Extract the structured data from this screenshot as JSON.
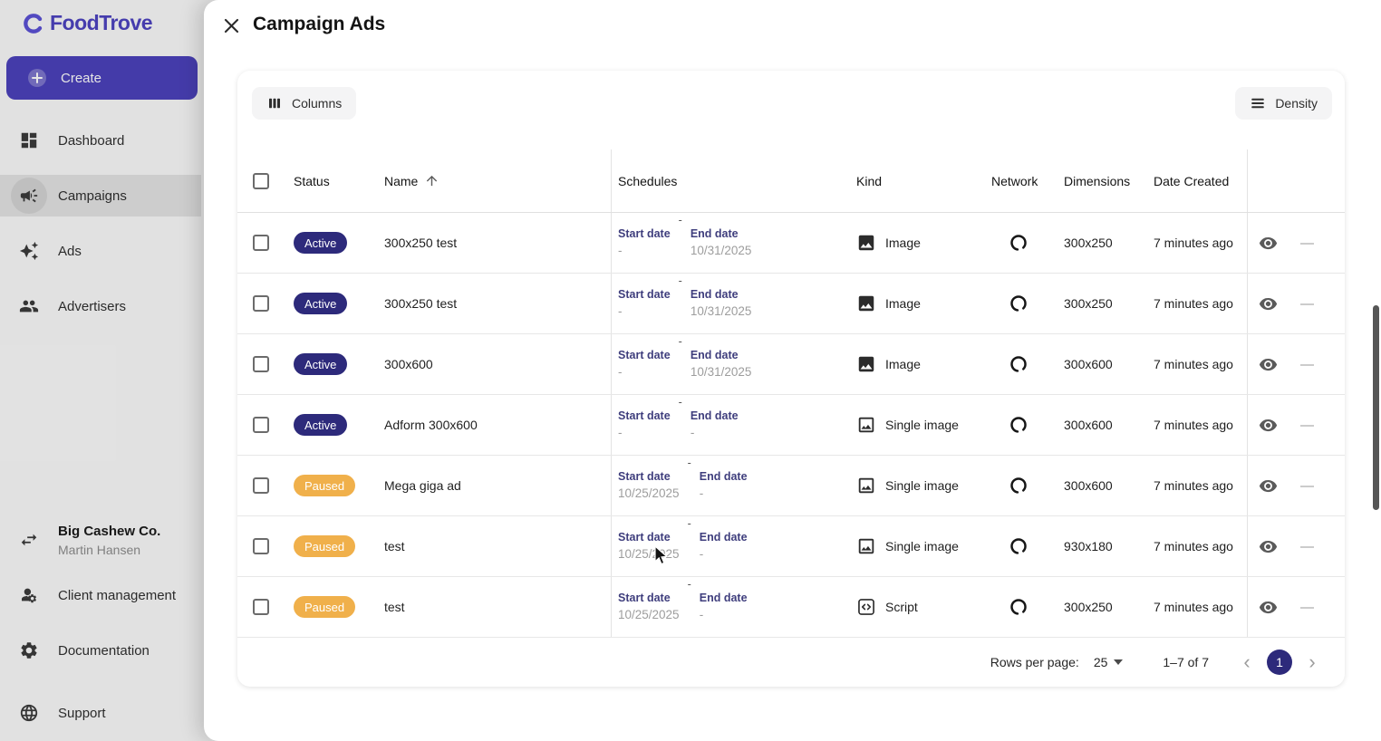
{
  "colors": {
    "primary": "#463CB4",
    "active_badge": "#2D2A7B",
    "paused_badge": "#F0B04B",
    "logo": "#4C42C0"
  },
  "sidebar": {
    "logo_text": "FoodTrove",
    "create_button": "Create",
    "nav": [
      {
        "label": "Dashboard",
        "selected": false
      },
      {
        "label": "Campaigns",
        "selected": true
      },
      {
        "label": "Ads",
        "selected": false
      },
      {
        "label": "Advertisers",
        "selected": false
      }
    ],
    "account": {
      "company": "Big Cashew Co.",
      "user": "Martin Hansen"
    },
    "secondary_nav": [
      {
        "label": "Client management"
      },
      {
        "label": "Documentation"
      },
      {
        "label": "Support"
      }
    ]
  },
  "panel": {
    "title": "Campaign Ads",
    "toolbar": {
      "columns": "Columns",
      "density": "Density"
    },
    "table": {
      "columns": {
        "status": "Status",
        "name": "Name",
        "schedules": "Schedules",
        "kind": "Kind",
        "network": "Network",
        "dimensions": "Dimensions",
        "date_created": "Date Created"
      },
      "schedule_labels": {
        "start": "Start date",
        "end": "End date"
      },
      "row_dash": "—",
      "rows": [
        {
          "status": "Active",
          "name": "300x250 test",
          "start": "-",
          "end": "10/31/2025",
          "kind": "Image",
          "kind_icon": "image-filled",
          "dimensions": "300x250",
          "created": "7 minutes ago"
        },
        {
          "status": "Active",
          "name": "300x250 test",
          "start": "-",
          "end": "10/31/2025",
          "kind": "Image",
          "kind_icon": "image-filled",
          "dimensions": "300x250",
          "created": "7 minutes ago"
        },
        {
          "status": "Active",
          "name": "300x600",
          "start": "-",
          "end": "10/31/2025",
          "kind": "Image",
          "kind_icon": "image-filled",
          "dimensions": "300x600",
          "created": "7 minutes ago"
        },
        {
          "status": "Active",
          "name": "Adform 300x600",
          "start": "-",
          "end": "-",
          "kind": "Single image",
          "kind_icon": "image-outlined",
          "dimensions": "300x600",
          "created": "7 minutes ago"
        },
        {
          "status": "Paused",
          "name": "Mega giga ad",
          "start": "10/25/2025",
          "end": "-",
          "kind": "Single image",
          "kind_icon": "image-outlined",
          "dimensions": "300x600",
          "created": "7 minutes ago"
        },
        {
          "status": "Paused",
          "name": "test",
          "start": "10/25/2025",
          "end": "-",
          "kind": "Single image",
          "kind_icon": "image-outlined",
          "dimensions": "930x180",
          "created": "7 minutes ago"
        },
        {
          "status": "Paused",
          "name": "test",
          "start": "10/25/2025",
          "end": "-",
          "kind": "Script",
          "kind_icon": "script",
          "dimensions": "300x250",
          "created": "7 minutes ago"
        }
      ]
    },
    "pagination": {
      "rows_per_page_label": "Rows per page:",
      "rows_per_page_value": "25",
      "range": "1–7 of 7",
      "current_page": "1"
    }
  }
}
